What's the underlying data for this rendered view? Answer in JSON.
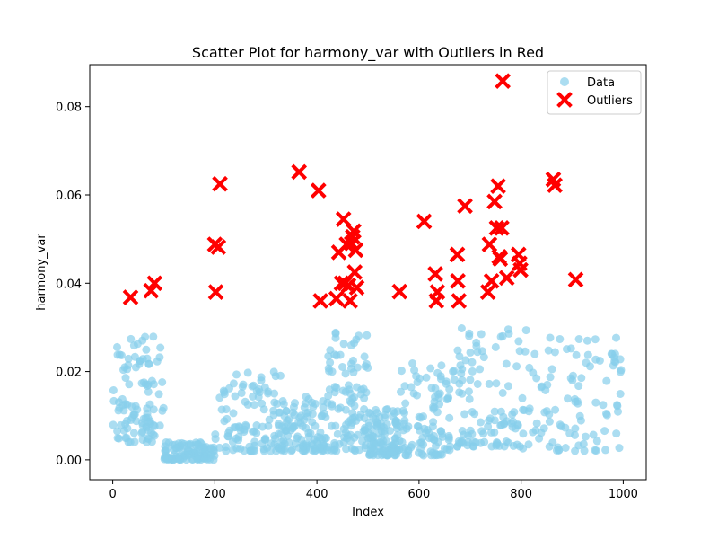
{
  "chart_data": {
    "type": "scatter",
    "title": "Scatter Plot for harmony_var with Outliers in Red",
    "xlabel": "Index",
    "ylabel": "harmony_var",
    "xlim": [
      -45,
      1045
    ],
    "ylim": [
      -0.0045,
      0.0895
    ],
    "xticks": [
      0,
      200,
      400,
      600,
      800,
      1000
    ],
    "yticks": [
      0.0,
      0.02,
      0.04,
      0.06,
      0.08
    ],
    "ytick_labels": [
      "0.00",
      "0.02",
      "0.04",
      "0.06",
      "0.08"
    ],
    "legend_position": "top-right",
    "grid": false,
    "series": [
      {
        "name": "Data",
        "color": "#87ceeb",
        "marker": "circle",
        "generated": true,
        "n": 940,
        "clusters": [
          {
            "x_range": [
              0,
              100
            ],
            "y_range": [
              0.004,
              0.028
            ]
          },
          {
            "x_range": [
              100,
              200
            ],
            "y_range": [
              0.0,
              0.004
            ]
          },
          {
            "x_range": [
              200,
              330
            ],
            "y_range": [
              0.002,
              0.02
            ]
          },
          {
            "x_range": [
              330,
              420
            ],
            "y_range": [
              0.002,
              0.015
            ]
          },
          {
            "x_range": [
              420,
              500
            ],
            "y_range": [
              0.002,
              0.03
            ]
          },
          {
            "x_range": [
              500,
              560
            ],
            "y_range": [
              0.001,
              0.012
            ]
          },
          {
            "x_range": [
              560,
              660
            ],
            "y_range": [
              0.001,
              0.022
            ]
          },
          {
            "x_range": [
              660,
              800
            ],
            "y_range": [
              0.003,
              0.03
            ]
          },
          {
            "x_range": [
              800,
              1000
            ],
            "y_range": [
              0.002,
              0.03
            ]
          }
        ]
      },
      {
        "name": "Outliers",
        "color": "#ff0000",
        "marker": "x",
        "points": [
          [
            35,
            0.0368
          ],
          [
            75,
            0.0383
          ],
          [
            82,
            0.04
          ],
          [
            200,
            0.0488
          ],
          [
            202,
            0.038
          ],
          [
            207,
            0.0482
          ],
          [
            210,
            0.0625
          ],
          [
            365,
            0.0652
          ],
          [
            403,
            0.061
          ],
          [
            407,
            0.036
          ],
          [
            438,
            0.0365
          ],
          [
            443,
            0.047
          ],
          [
            448,
            0.04
          ],
          [
            452,
            0.0545
          ],
          [
            455,
            0.04
          ],
          [
            458,
            0.0488
          ],
          [
            462,
            0.0395
          ],
          [
            465,
            0.036
          ],
          [
            468,
            0.049
          ],
          [
            470,
            0.0505
          ],
          [
            472,
            0.0518
          ],
          [
            474,
            0.0425
          ],
          [
            476,
            0.0475
          ],
          [
            478,
            0.039
          ],
          [
            562,
            0.0381
          ],
          [
            610,
            0.054
          ],
          [
            632,
            0.0421
          ],
          [
            634,
            0.036
          ],
          [
            636,
            0.038
          ],
          [
            675,
            0.0465
          ],
          [
            676,
            0.0405
          ],
          [
            678,
            0.036
          ],
          [
            690,
            0.0575
          ],
          [
            735,
            0.038
          ],
          [
            738,
            0.0488
          ],
          [
            742,
            0.0405
          ],
          [
            748,
            0.0585
          ],
          [
            752,
            0.0525
          ],
          [
            755,
            0.062
          ],
          [
            757,
            0.046
          ],
          [
            759,
            0.0455
          ],
          [
            762,
            0.0525
          ],
          [
            764,
            0.0858
          ],
          [
            772,
            0.0412
          ],
          [
            795,
            0.0465
          ],
          [
            797,
            0.0445
          ],
          [
            799,
            0.043
          ],
          [
            863,
            0.0635
          ],
          [
            866,
            0.0622
          ],
          [
            907,
            0.0408
          ]
        ]
      }
    ]
  }
}
